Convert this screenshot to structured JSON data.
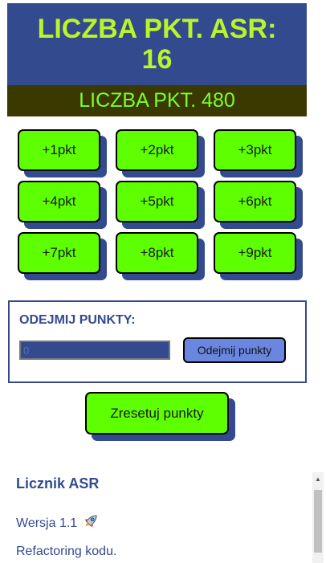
{
  "header": {
    "asr_label": "LICZBA PKT. ASR:",
    "asr_value": "16",
    "total_label": "LICZBA PKT. 480"
  },
  "buttons": [
    "+1pkt",
    "+2pkt",
    "+3pkt",
    "+4pkt",
    "+5pkt",
    "+6pkt",
    "+7pkt",
    "+8pkt",
    "+9pkt"
  ],
  "subtract": {
    "title": "ODEJMIJ PUNKTY:",
    "placeholder": "0",
    "button_label": "Odejmij punkty"
  },
  "reset": {
    "label": "Zresetuj punkty"
  },
  "info": {
    "title": "Licznik ASR",
    "version": "Wersja 1.1",
    "version_icon": "rocket-icon",
    "note": "Refactoring kodu."
  },
  "colors": {
    "primary": "#344a8f",
    "accent_green": "#5eff00",
    "header_text": "#b9f52a",
    "total_bg": "#3a3a00",
    "total_text": "#7dff29",
    "subtract_button": "#6b86e0"
  }
}
